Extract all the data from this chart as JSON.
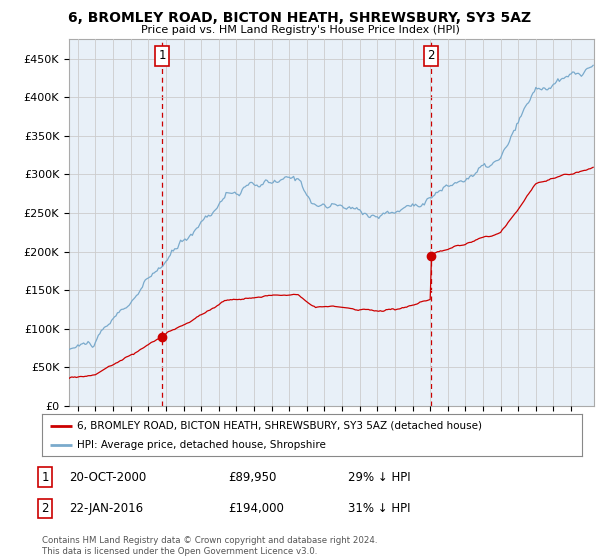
{
  "title": "6, BROMLEY ROAD, BICTON HEATH, SHREWSBURY, SY3 5AZ",
  "subtitle": "Price paid vs. HM Land Registry's House Price Index (HPI)",
  "ylabel_ticks": [
    "£0",
    "£50K",
    "£100K",
    "£150K",
    "£200K",
    "£250K",
    "£300K",
    "£350K",
    "£400K",
    "£450K"
  ],
  "ytick_values": [
    0,
    50000,
    100000,
    150000,
    200000,
    250000,
    300000,
    350000,
    400000,
    450000
  ],
  "ylim": [
    0,
    475000
  ],
  "xlim_start": 1995.5,
  "xlim_end": 2025.3,
  "sale1_year": 2000.8,
  "sale1_price": 89950,
  "sale2_year": 2016.05,
  "sale2_price": 194000,
  "legend_red": "6, BROMLEY ROAD, BICTON HEATH, SHREWSBURY, SY3 5AZ (detached house)",
  "legend_blue": "HPI: Average price, detached house, Shropshire",
  "table_row1_date": "20-OCT-2000",
  "table_row1_price": "£89,950",
  "table_row1_hpi": "29% ↓ HPI",
  "table_row2_date": "22-JAN-2016",
  "table_row2_price": "£194,000",
  "table_row2_hpi": "31% ↓ HPI",
  "footer": "Contains HM Land Registry data © Crown copyright and database right 2024.\nThis data is licensed under the Open Government Licence v3.0.",
  "bg_color": "#ffffff",
  "chart_bg_color": "#e8f0f8",
  "grid_color": "#cccccc",
  "red_color": "#cc0000",
  "blue_color": "#7aaacc"
}
